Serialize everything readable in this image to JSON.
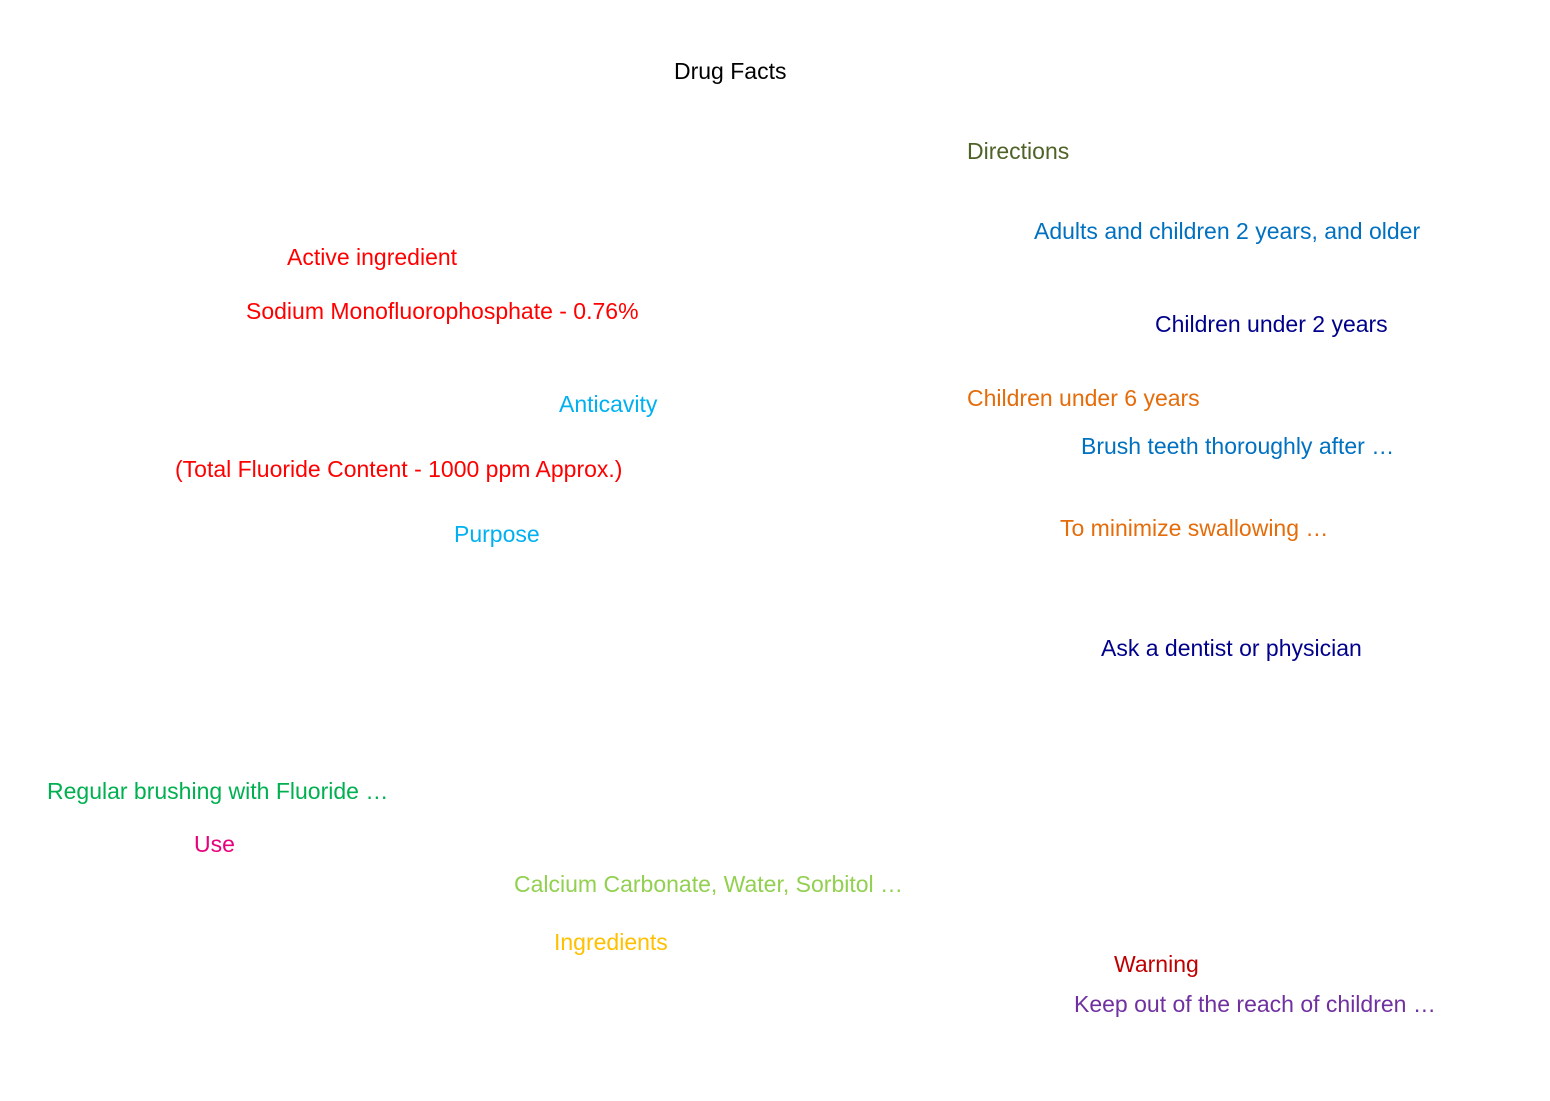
{
  "title": {
    "text": "Drug Facts",
    "color": "#000000"
  },
  "nodes": {
    "directions": {
      "text": "Directions",
      "color": "#4F6228"
    },
    "adults": {
      "text": "Adults and children 2 years, and older",
      "color": "#0070C0"
    },
    "active_ingredient": {
      "text": "Active ingredient",
      "color": "#FF0000"
    },
    "sodium": {
      "text": "Sodium Monofluorophosphate - 0.76%",
      "color": "#FF0000"
    },
    "children_under_2": {
      "text": "Children under 2 years",
      "color": "#00008B"
    },
    "children_under_6": {
      "text": "Children under 6 years",
      "color": "#E46C0A"
    },
    "anticavity": {
      "text": "Anticavity",
      "color": "#00B0F0"
    },
    "brush": {
      "text": "Brush teeth thoroughly after …",
      "color": "#0070C0"
    },
    "fluoride_content": {
      "text": "(Total Fluoride Content - 1000 ppm Approx.)",
      "color": "#FF0000"
    },
    "minimize": {
      "text": "To minimize swallowing …",
      "color": "#E46C0A"
    },
    "purpose": {
      "text": "Purpose",
      "color": "#00B0F0"
    },
    "ask_dentist": {
      "text": "Ask a dentist or physician",
      "color": "#00008B"
    },
    "regular_brushing": {
      "text": "Regular brushing with Fluoride …",
      "color": "#00B050"
    },
    "use": {
      "text": "Use",
      "color": "#E8007C"
    },
    "calcium": {
      "text": "Calcium Carbonate, Water, Sorbitol …",
      "color": "#92D050"
    },
    "ingredients": {
      "text": "Ingredients",
      "color": "#FFC000"
    },
    "warning": {
      "text": "Warning",
      "color": "#C00000"
    },
    "keep_out": {
      "text": "Keep out of the reach of children …",
      "color": "#7030A0"
    }
  }
}
